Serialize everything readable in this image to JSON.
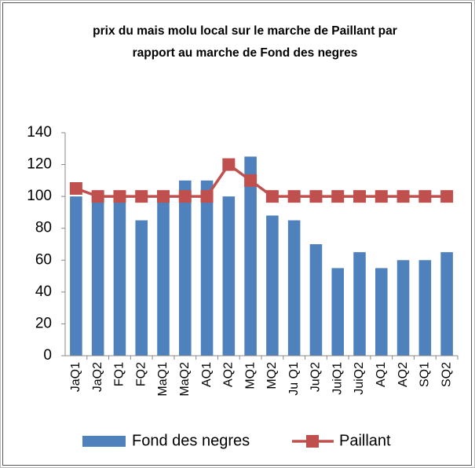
{
  "chart_data": {
    "type": "bar",
    "title": [
      "prix du mais molu local sur le marche de Paillant par",
      "rapport au marche de Fond des negres"
    ],
    "categories": [
      "JaQ1",
      "JaQ2",
      "FQ1",
      "FQ2",
      "MaQ1",
      "MaQ2",
      "AQ1",
      "AQ2",
      "MQ1",
      "MQ2",
      "Ju Q1",
      "JuQ2",
      "JuiQ1",
      "JuiQ2",
      "AQ1",
      "AQ2",
      "SQ1",
      "SQ2"
    ],
    "series": [
      {
        "name": "Fond des negres",
        "type": "bar",
        "color": "#4f81bd",
        "values": [
          100,
          100,
          100,
          85,
          100,
          110,
          110,
          100,
          125,
          88,
          85,
          70,
          55,
          65,
          55,
          60,
          60,
          65
        ]
      },
      {
        "name": "Paillant",
        "type": "line",
        "color": "#c0504d",
        "values": [
          105,
          100,
          100,
          100,
          100,
          100,
          100,
          120,
          110,
          100,
          100,
          100,
          100,
          100,
          100,
          100,
          100,
          100
        ]
      }
    ],
    "ylim": [
      0,
      140
    ],
    "yticks": [
      0,
      20,
      40,
      60,
      80,
      100,
      120,
      140
    ],
    "grid": false,
    "legend": "bottom"
  }
}
